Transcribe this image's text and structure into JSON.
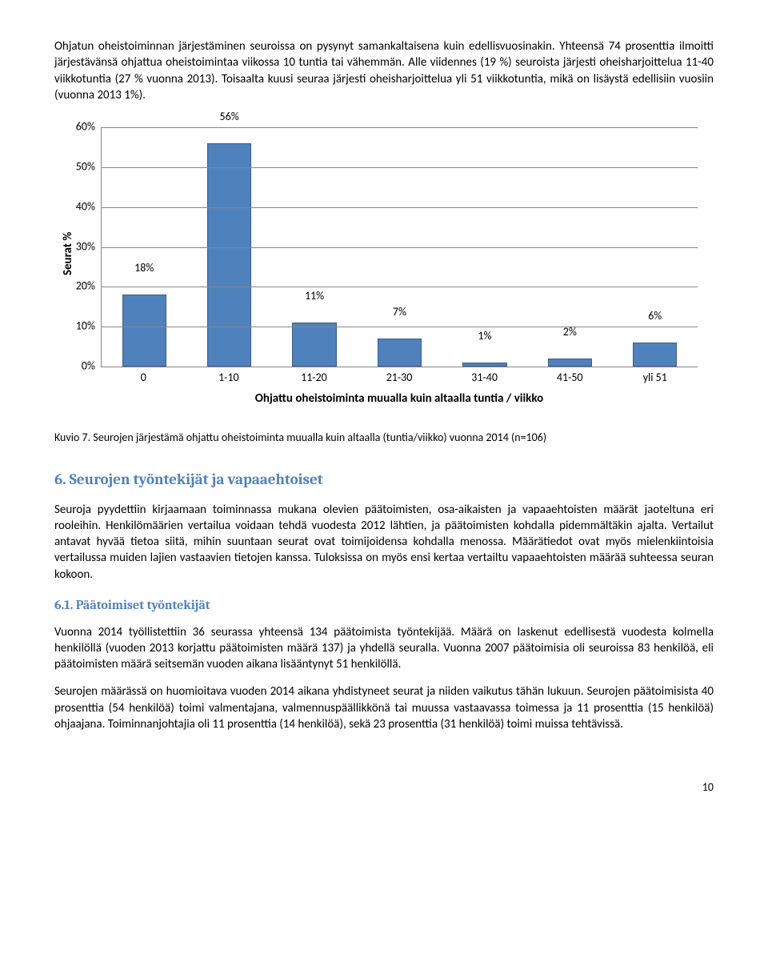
{
  "intro_paragraph": "Ohjatun oheistoiminnan järjestäminen seuroissa on pysynyt samankaltaisena kuin edellisvuosinakin. Yhteensä 74 prosenttia ilmoitti järjestävänsä ohjattua oheistoimintaa viikossa 10 tuntia tai vähemmän. Alle viidennes (19 %) seuroista järjesti oheisharjoittelua 11-40 viikkotuntia (27 % vuonna 2013). Toisaalta kuusi seuraa järjesti oheisharjoittelua yli 51 viikkotuntia, mikä on lisäystä edellisiin vuosiin (vuonna 2013 1%).",
  "chart": {
    "type": "bar",
    "y_label": "Seurat %",
    "x_label": "Ohjattu oheistoiminta muualla kuin altaalla tuntia / viikko",
    "categories": [
      "0",
      "1-10",
      "11-20",
      "21-30",
      "31-40",
      "41-50",
      "yli 51"
    ],
    "value_labels": [
      "18%",
      "56%",
      "11%",
      "7%",
      "1%",
      "2%",
      "6%"
    ],
    "values": [
      18,
      56,
      11,
      7,
      1,
      2,
      6
    ],
    "y_ticks": [
      "0%",
      "10%",
      "20%",
      "30%",
      "40%",
      "50%",
      "60%"
    ],
    "y_max": 60,
    "bar_fill": "#4f81bd",
    "bar_border": "#385d8a",
    "grid_color": "#868686",
    "background": "#ffffff"
  },
  "caption": "Kuvio 7. Seurojen järjestämä ohjattu oheistoiminta muualla kuin altaalla (tuntia/viikko) vuonna 2014 (n=106)",
  "section6_heading": "6.  Seurojen työntekijät ja vapaaehtoiset",
  "section6_paragraph": "Seuroja pyydettiin kirjaamaan toiminnassa mukana olevien päätoimisten, osa-aikaisten ja vapaaehtoisten määrät jaoteltuna eri rooleihin. Henkilömäärien vertailua voidaan tehdä vuodesta 2012 lähtien, ja päätoimisten kohdalla pidemmältäkin ajalta. Vertailut antavat hyvää tietoa siitä, mihin suuntaan seurat ovat toimijoidensa kohdalla menossa. Määrätiedot ovat myös mielenkiintoisia vertailussa muiden lajien vastaavien tietojen kanssa. Tuloksissa on myös ensi kertaa vertailtu vapaaehtoisten määrää suhteessa seuran kokoon.",
  "section6_1_heading": "6.1. Päätoimiset työntekijät",
  "section6_1_p1": "Vuonna 2014 työllistettiin 36 seurassa yhteensä 134 päätoimista työntekijää. Määrä on laskenut edellisestä vuodesta kolmella henkilöllä (vuoden 2013 korjattu päätoimisten määrä 137) ja yhdellä seuralla. Vuonna 2007 päätoimisia oli seuroissa 83 henkilöä, eli päätoimisten määrä seitsemän vuoden aikana lisääntynyt 51 henkilöllä.",
  "section6_1_p2": "Seurojen määrässä on huomioitava vuoden 2014 aikana yhdistyneet seurat ja niiden vaikutus tähän lukuun. Seurojen päätoimisista 40 prosenttia (54 henkilöä) toimi valmentajana, valmennuspäällikkönä tai muussa vastaavassa toimessa ja 11 prosenttia (15 henkilöä) ohjaajana. Toiminnanjohtajia oli 11 prosenttia (14 henkilöä), sekä 23 prosenttia (31 henkilöä) toimi muissa tehtävissä.",
  "page_number": "10"
}
